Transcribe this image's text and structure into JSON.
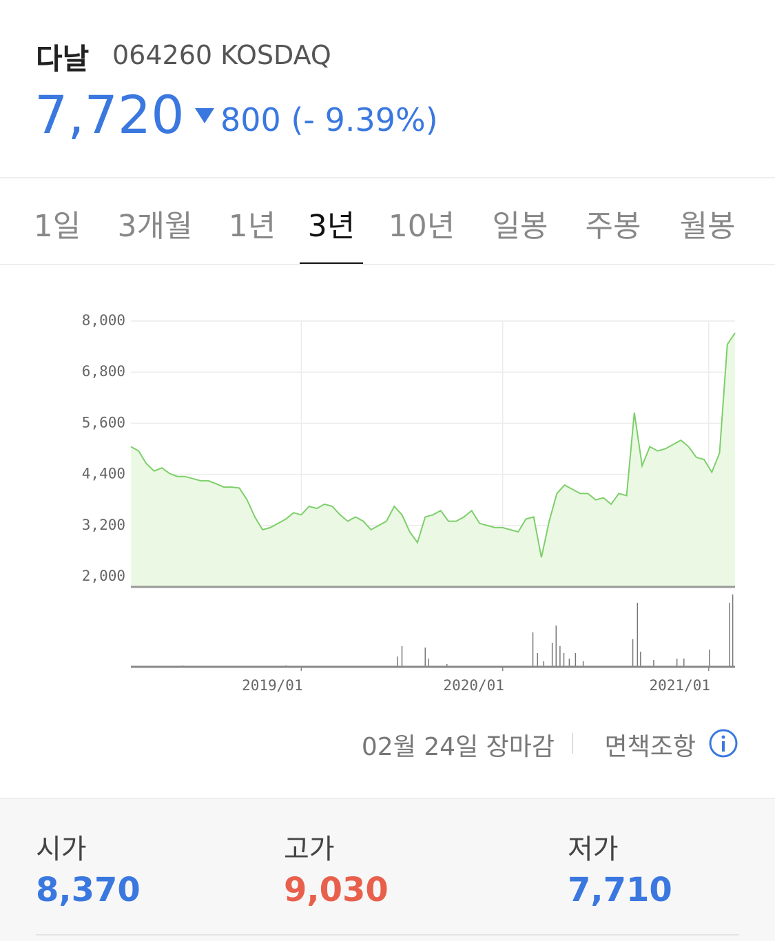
{
  "header": {
    "name": "다날",
    "code": "064260 KOSDAQ",
    "price": "7,720",
    "change": "800 (- 9.39%)"
  },
  "tabs": [
    "1일",
    "3개월",
    "1년",
    "3년",
    "10년",
    "일봉",
    "주봉",
    "월봉"
  ],
  "selected_tab": 3,
  "chart_data": {
    "type": "line",
    "series": [
      {
        "color": "#7dcf6a",
        "values": [
          5050,
          4950,
          4650,
          4480,
          4550,
          4420,
          4350,
          4350,
          4300,
          4250,
          4250,
          4180,
          4100,
          4100,
          4080,
          3800,
          3400,
          3100,
          3150,
          3250,
          3350,
          3500,
          3450,
          3650,
          3600,
          3700,
          3650,
          3450,
          3300,
          3400,
          3300,
          3100,
          3200,
          3300,
          3650,
          3450,
          3050,
          2800,
          3400,
          3450,
          3550,
          3300,
          3300,
          3400,
          3550,
          3250,
          3200,
          3150,
          3150,
          3100,
          3050,
          3350,
          3400,
          2450,
          3300,
          3950,
          4150,
          4050,
          3950,
          3950,
          3800,
          3850,
          3700,
          3950,
          3900,
          5850,
          4600,
          5050,
          4950,
          5000,
          5100,
          5200,
          5050,
          4800,
          4750,
          4450,
          4900,
          7450,
          7720
        ]
      }
    ],
    "fill_color": "#ebf9e4",
    "xlim": [
      0,
      78
    ],
    "xticks": [
      {
        "value": 22,
        "label": "2019/01"
      },
      {
        "value": 48,
        "label": "2020/01"
      },
      {
        "value": 74.6,
        "label": "2021/01"
      }
    ],
    "ylim": [
      2000,
      8000
    ],
    "yticks": [
      {
        "value": 2000,
        "label": "2,000"
      },
      {
        "value": 3200,
        "label": "3,200"
      },
      {
        "value": 4400,
        "label": "4,400"
      },
      {
        "value": 5600,
        "label": "5,600"
      },
      {
        "value": 6800,
        "label": "6,800"
      },
      {
        "value": 8000,
        "label": "8,000"
      }
    ],
    "grid": true,
    "volume": {
      "color": "#777777",
      "ylim": [
        0,
        110
      ],
      "x": [
        6.7,
        20,
        34.4,
        35,
        38,
        38.4,
        40.8,
        51.9,
        52.5,
        53.3,
        54.4,
        54.9,
        55.4,
        55.9,
        56.6,
        57.4,
        58.4,
        64.8,
        65.4,
        65.8,
        67.5,
        70.5,
        71.4,
        74.7,
        77.3,
        77.7
      ],
      "values": [
        2,
        2,
        15,
        30,
        28,
        12,
        4,
        50,
        20,
        8,
        35,
        60,
        30,
        20,
        12,
        20,
        8,
        40,
        93,
        22,
        10,
        12,
        12,
        25,
        93,
        105
      ]
    }
  },
  "footer": {
    "status": "02월 24일 장마감",
    "disclaimer": "면책조항"
  },
  "stats": [
    {
      "label": "시가",
      "value": "8,370",
      "color": "#3a78e0"
    },
    {
      "label": "고가",
      "value": "9,030",
      "color": "#e8604c"
    },
    {
      "label": "저가",
      "value": "7,710",
      "color": "#3a78e0"
    }
  ]
}
